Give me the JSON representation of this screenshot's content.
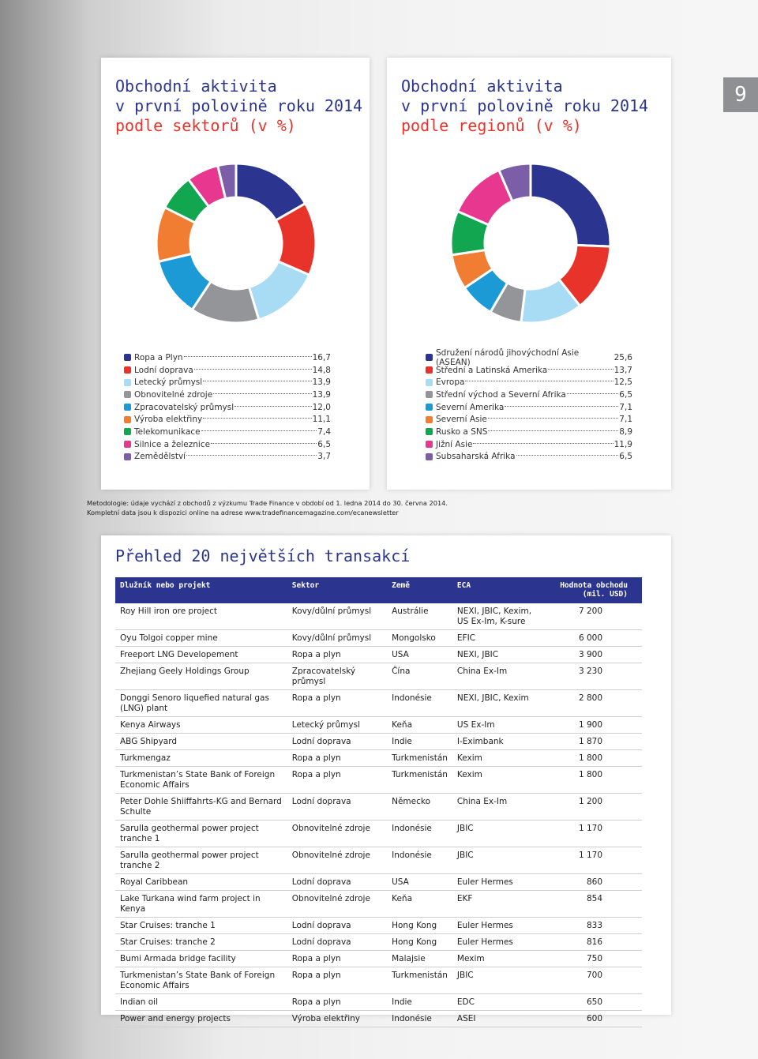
{
  "page_number": "9",
  "chart_data": [
    {
      "type": "pie",
      "title": [
        "Obchodní aktivita",
        "v první polovině roku 2014"
      ],
      "subtitle": "podle sektorů (v %)",
      "categories": [
        "Ropa a Plyn",
        "Lodní doprava",
        "Letecký průmysl",
        "Obnovitelné zdroje",
        "Zpracovatelský průmysl",
        "Výroba elektřiny",
        "Telekomunikace",
        "Silnice a železnice",
        "Zemědělství"
      ],
      "values": [
        16.7,
        14.8,
        13.9,
        13.9,
        12.0,
        11.1,
        7.4,
        6.5,
        3.7
      ],
      "value_labels": [
        "16,7",
        "14,8",
        "13,9",
        "13,9",
        "12,0",
        "11,1",
        "7,4",
        "6,5",
        "3,7"
      ],
      "colors": [
        "#2b3590",
        "#e8332a",
        "#a8dcf5",
        "#939598",
        "#1c9ad6",
        "#f07d32",
        "#12a650",
        "#e8378f",
        "#7b5ea7"
      ]
    },
    {
      "type": "pie",
      "title": [
        "Obchodní aktivita",
        "v první polovině roku 2014"
      ],
      "subtitle": "podle regionů (v %)",
      "categories": [
        "Sdružení národů jihovýchodní Asie (ASEAN)",
        "Střední a Latinská Amerika",
        "Evropa",
        "Střední východ a Severní Afrika",
        "Severní Amerika",
        "Severní Asie",
        "Rusko a SNS",
        "Jižní Asie",
        "Subsaharská Afrika"
      ],
      "values": [
        25.6,
        13.7,
        12.5,
        6.5,
        7.1,
        7.1,
        8.9,
        11.9,
        6.5
      ],
      "value_labels": [
        "25,6",
        "13,7",
        "12,5",
        "6,5",
        "7,1",
        "7,1",
        "8,9",
        "11,9",
        "6,5"
      ],
      "colors": [
        "#2b3590",
        "#e8332a",
        "#a8dcf5",
        "#939598",
        "#1c9ad6",
        "#f07d32",
        "#12a650",
        "#e8378f",
        "#7b5ea7"
      ]
    }
  ],
  "methodology": [
    "Metodologie: údaje vychází z obchodů z výzkumu Trade Finance v období od 1. ledna 2014 do 30. června 2014.",
    "Kompletní data jsou k dispozici online na adrese www.tradefinancemagazine.com/ecanewsletter"
  ],
  "table": {
    "title": "Přehled 20 největších transakcí",
    "header": [
      "Dlužník nebo projekt",
      "Sektor",
      "Země",
      "ECA",
      "Hodnota obchodu (mil. USD)"
    ],
    "rows": [
      [
        "Roy Hill iron ore project",
        "Kovy/důlní průmysl",
        "Austrálie",
        "NEXI, JBIC, Kexim, US Ex-Im, K-sure",
        "7 200"
      ],
      [
        "Oyu Tolgoi copper mine",
        "Kovy/důlní průmysl",
        "Mongolsko",
        "EFIC",
        "6 000"
      ],
      [
        "Freeport LNG Developement",
        "Ropa a plyn",
        "USA",
        "NEXI, JBIC",
        "3 900"
      ],
      [
        "Zhejiang Geely Holdings Group",
        "Zpracovatelský průmysl",
        "Čína",
        "China Ex-Im",
        "3 230"
      ],
      [
        "Donggi Senoro liquefied natural gas (LNG) plant",
        "Ropa a plyn",
        "Indonésie",
        "NEXI, JBIC, Kexim",
        "2 800"
      ],
      [
        "Kenya Airways",
        "Letecký průmysl",
        "Keňa",
        "US Ex-Im",
        "1 900"
      ],
      [
        "ABG Shipyard",
        "Lodní doprava",
        "Indie",
        "I-Eximbank",
        "1 870"
      ],
      [
        "Turkmengaz",
        "Ropa a plyn",
        "Turkmenistán",
        "Kexim",
        "1 800"
      ],
      [
        "Turkmenistan’s State Bank of Foreign Economic Affairs",
        "Ropa a plyn",
        "Turkmenistán",
        "Kexim",
        "1 800"
      ],
      [
        "Peter Dohle Shiiffahrts-KG and Bernard Schulte",
        "Lodní doprava",
        "Německo",
        "China Ex-Im",
        "1 200"
      ],
      [
        "Sarulla geothermal power project tranche 1",
        "Obnovitelné zdroje",
        "Indonésie",
        "JBIC",
        "1 170"
      ],
      [
        "Sarulla geothermal power project tranche 2",
        "Obnovitelné zdroje",
        "Indonésie",
        "JBIC",
        "1 170"
      ],
      [
        "Royal Caribbean",
        "Lodní doprava",
        "USA",
        "Euler Hermes",
        "860"
      ],
      [
        "Lake Turkana wind farm project in Kenya",
        "Obnovitelné zdroje",
        "Keňa",
        "EKF",
        "854"
      ],
      [
        "Star Cruises: tranche 1",
        "Lodní doprava",
        "Hong Kong",
        "Euler Hermes",
        "833"
      ],
      [
        "Star Cruises: tranche 2",
        "Lodní doprava",
        "Hong Kong",
        "Euler Hermes",
        "816"
      ],
      [
        "Bumi Armada bridge facility",
        "Ropa a plyn",
        "Malajsie",
        "Mexim",
        "750"
      ],
      [
        "Turkmenistan’s State Bank of Foreign Economic Affairs",
        "Ropa a plyn",
        "Turkmenistán",
        "JBIC",
        "700"
      ],
      [
        "Indian oil",
        "Ropa a plyn",
        "Indie",
        "EDC",
        "650"
      ],
      [
        "Power and energy projects",
        "Výroba elektřiny",
        "Indonésie",
        "ASEI",
        "600"
      ]
    ]
  }
}
